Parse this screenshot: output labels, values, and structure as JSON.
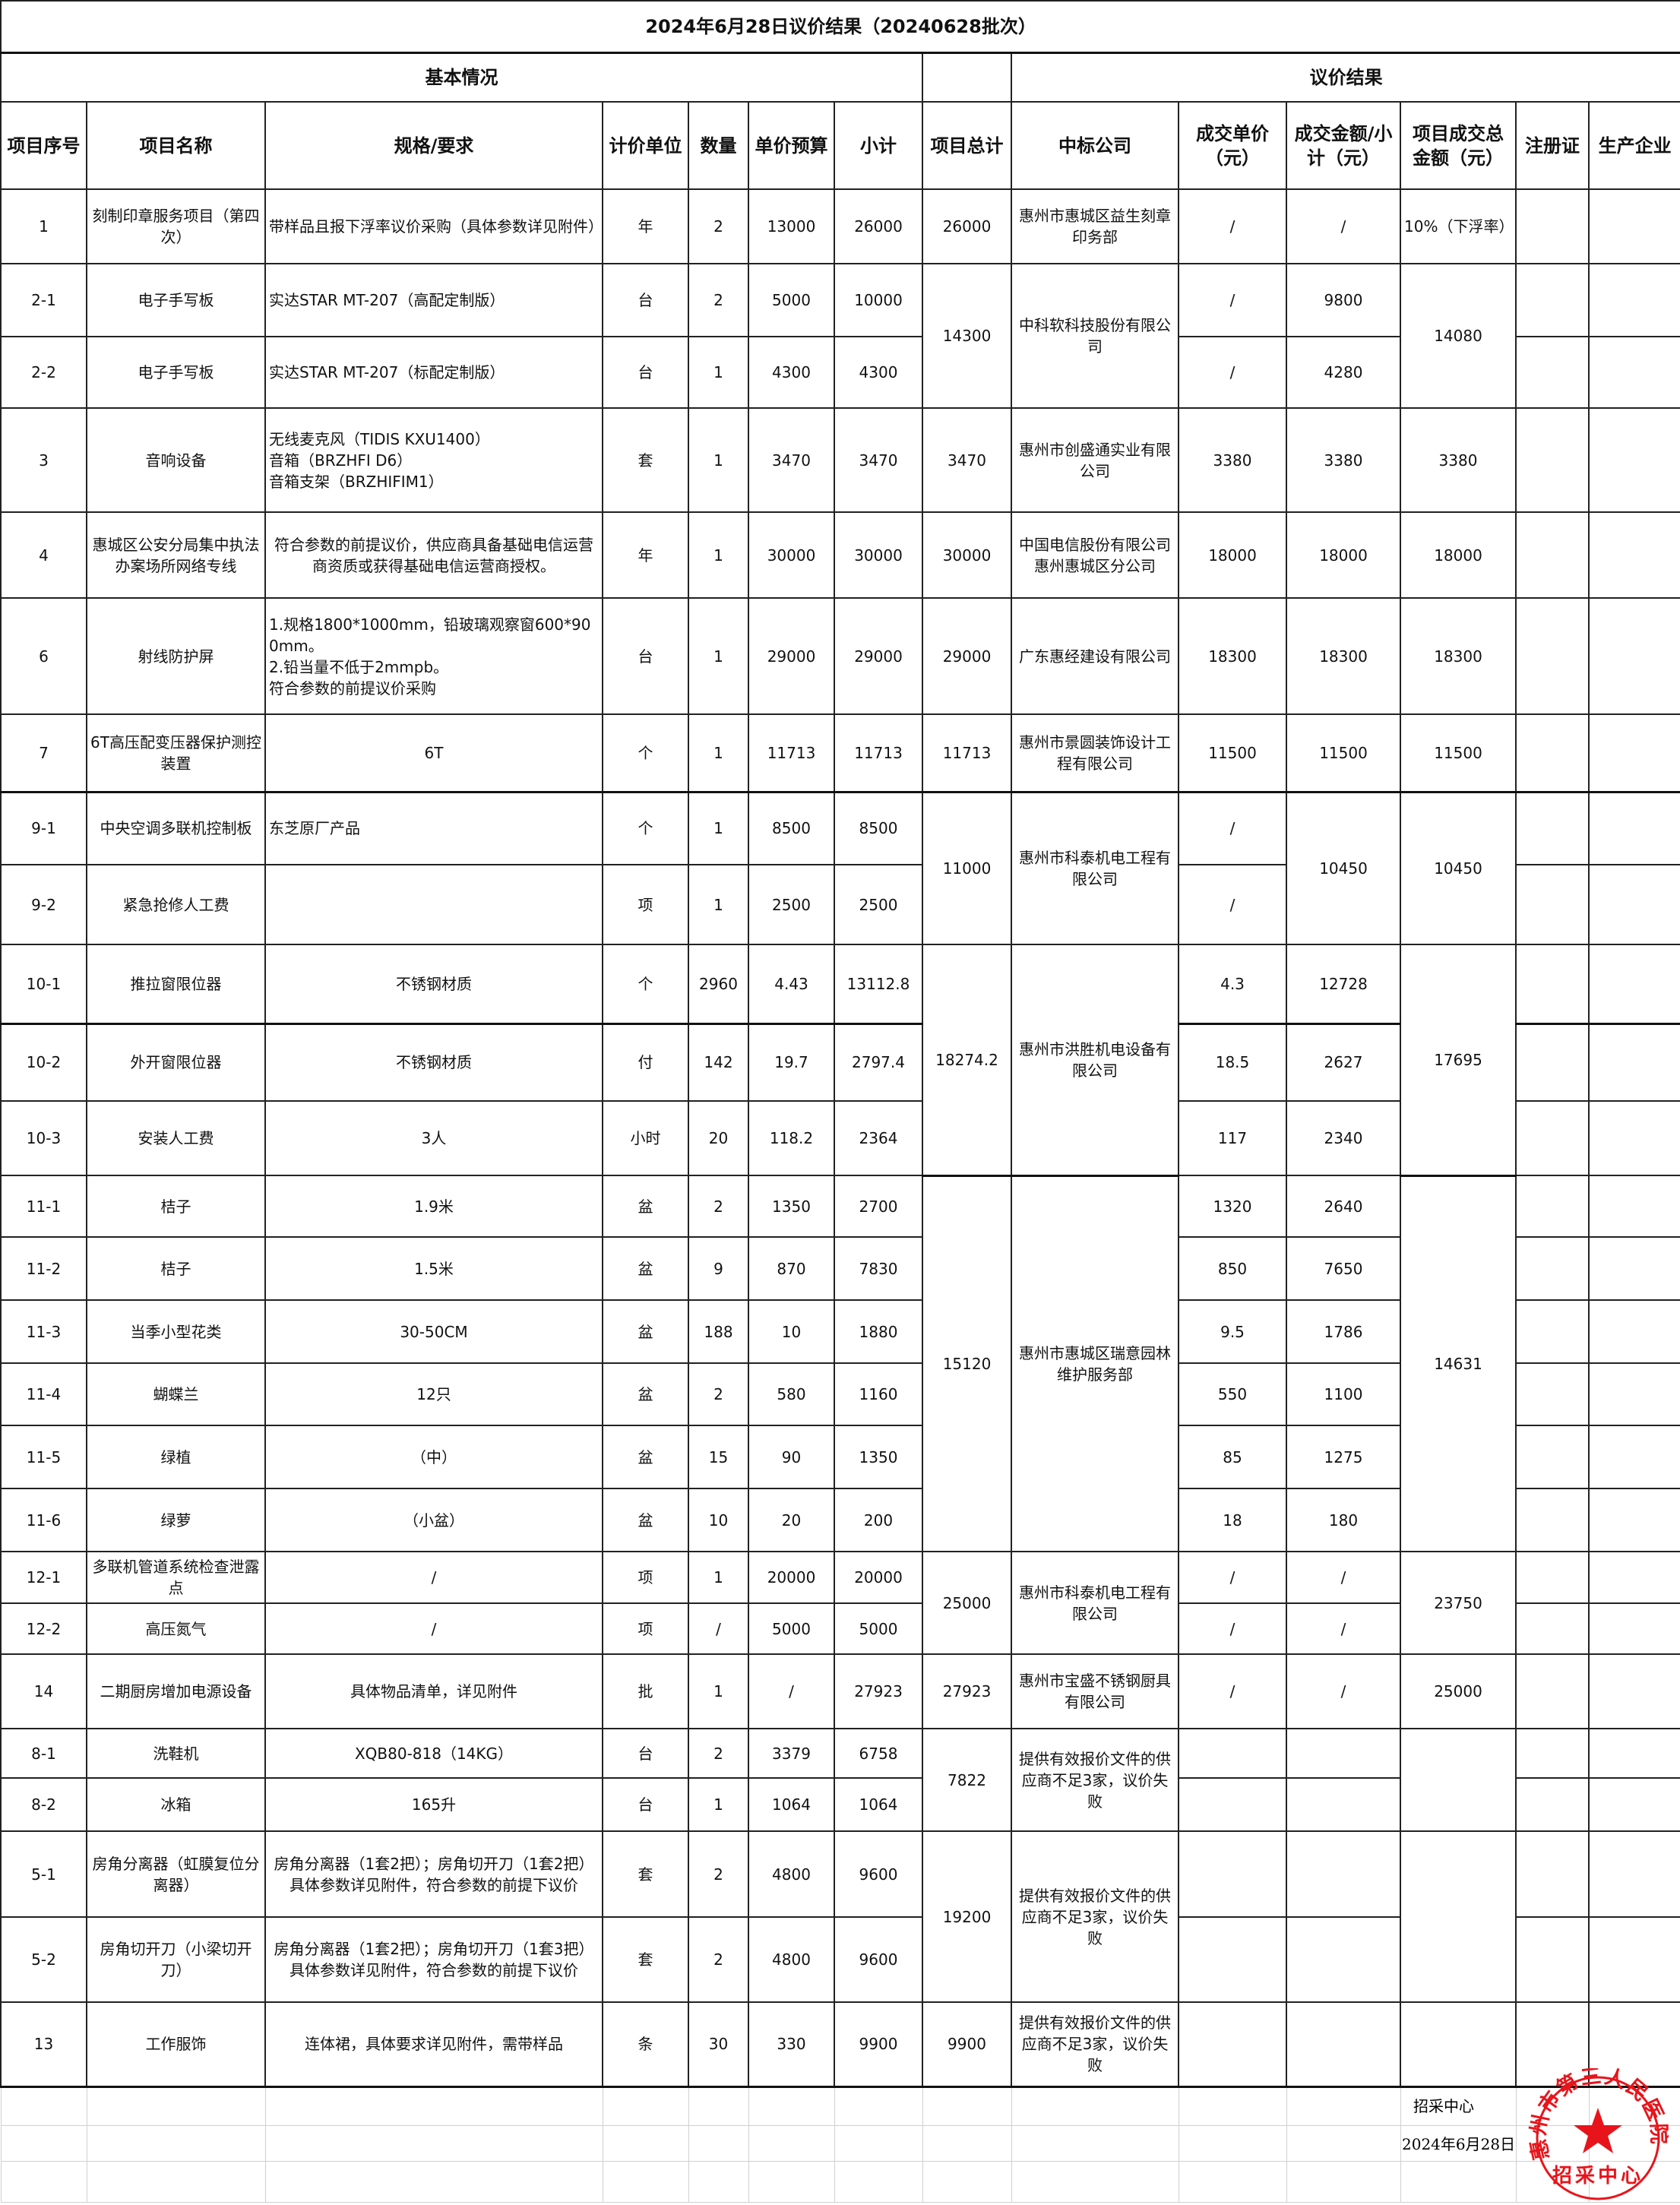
{
  "title": "2024年6月28日议价结果（20240628批次）",
  "sections": {
    "basic": "基本情况",
    "result": "议价结果"
  },
  "headers": [
    "项目序号",
    "项目名称",
    "规格/要求",
    "计价单位",
    "数量",
    "单价预算",
    "小计",
    "项目总计",
    "中标公司",
    "成交单价（元）",
    "成交金额/小计（元）",
    "项目成交总金额（元）",
    "注册证",
    "生产企业"
  ],
  "groups": [
    {
      "total": "26000",
      "company": "惠州市惠城区益生刻章印务部",
      "deal_total": "10%（下浮率）",
      "items": [
        {
          "id": "1",
          "name": "刻制印章服务项目（第四次）",
          "spec": "带样品且报下浮率议价采购（具体参数详见附件）",
          "unit": "年",
          "qty": "2",
          "price": "13000",
          "subtotal": "26000",
          "deal_price": "/",
          "deal_amount": "/"
        }
      ]
    },
    {
      "total": "14300",
      "company": "中科软科技股份有限公司",
      "deal_total": "14080",
      "items": [
        {
          "id": "2-1",
          "name": "电子手写板",
          "spec": "实达STAR MT-207（高配定制版）",
          "unit": "台",
          "qty": "2",
          "price": "5000",
          "subtotal": "10000",
          "deal_price": "/",
          "deal_amount": "9800"
        },
        {
          "id": "2-2",
          "name": "电子手写板",
          "spec": "实达STAR MT-207（标配定制版）",
          "unit": "台",
          "qty": "1",
          "price": "4300",
          "subtotal": "4300",
          "deal_price": "/",
          "deal_amount": "4280"
        }
      ]
    },
    {
      "total": "3470",
      "company": "惠州市创盛通实业有限公司",
      "deal_total": "3380",
      "items": [
        {
          "id": "3",
          "name": "音响设备",
          "spec": "无线麦克风（TIDIS KXU1400）\n音箱（BRZHFI D6）\n音箱支架（BRZHIFIM1）",
          "unit": "套",
          "qty": "1",
          "price": "3470",
          "subtotal": "3470",
          "deal_price": "3380",
          "deal_amount": "3380"
        }
      ]
    },
    {
      "total": "30000",
      "company": "中国电信股份有限公司惠州惠城区分公司",
      "deal_total": "18000",
      "items": [
        {
          "id": "4",
          "name": "惠城区公安分局集中执法办案场所网络专线",
          "spec": "符合参数的前提议价，供应商具备基础电信运营商资质或获得基础电信运营商授权。",
          "unit": "年",
          "qty": "1",
          "price": "30000",
          "subtotal": "30000",
          "deal_price": "18000",
          "deal_amount": "18000"
        }
      ]
    },
    {
      "total": "29000",
      "company": "广东惠经建设有限公司",
      "deal_total": "18300",
      "items": [
        {
          "id": "6",
          "name": "射线防护屏",
          "spec": "1.规格1800*1000mm，铅玻璃观察窗600*900mm。\n2.铅当量不低于2mmpb。\n符合参数的前提议价采购",
          "unit": "台",
          "qty": "1",
          "price": "29000",
          "subtotal": "29000",
          "deal_price": "18300",
          "deal_amount": "18300"
        }
      ]
    },
    {
      "total": "11713",
      "company": "惠州市景圆装饰设计工程有限公司",
      "deal_total": "11500",
      "items": [
        {
          "id": "7",
          "name": "6T高压配变压器保护测控装置",
          "spec": "6T",
          "unit": "个",
          "qty": "1",
          "price": "11713",
          "subtotal": "11713",
          "deal_price": "11500",
          "deal_amount": "11500"
        }
      ]
    },
    {
      "total": "11000",
      "company": "惠州市科泰机电工程有限公司",
      "deal_total": "10450",
      "deal_amount_merged": "10450",
      "items": [
        {
          "id": "9-1",
          "name": "中央空调多联机控制板",
          "spec": "东芝原厂产品",
          "unit": "个",
          "qty": "1",
          "price": "8500",
          "subtotal": "8500",
          "deal_price": "/"
        },
        {
          "id": "9-2",
          "name": "紧急抢修人工费",
          "spec": "",
          "unit": "项",
          "qty": "1",
          "price": "2500",
          "subtotal": "2500",
          "deal_price": "/"
        }
      ]
    },
    {
      "total": "18274.2",
      "company": "惠州市洪胜机电设备有限公司",
      "deal_total": "17695",
      "items": [
        {
          "id": "10-1",
          "name": "推拉窗限位器",
          "spec": "不锈钢材质",
          "unit": "个",
          "qty": "2960",
          "price": "4.43",
          "subtotal": "13112.8",
          "deal_price": "4.3",
          "deal_amount": "12728"
        },
        {
          "id": "10-2",
          "name": "外开窗限位器",
          "spec": "不锈钢材质",
          "unit": "付",
          "qty": "142",
          "price": "19.7",
          "subtotal": "2797.4",
          "deal_price": "18.5",
          "deal_amount": "2627"
        },
        {
          "id": "10-3",
          "name": "安装人工费",
          "spec": "3人",
          "unit": "小时",
          "qty": "20",
          "price": "118.2",
          "subtotal": "2364",
          "deal_price": "117",
          "deal_amount": "2340"
        }
      ]
    },
    {
      "total": "15120",
      "company": "惠州市惠城区瑞意园林维护服务部",
      "deal_total": "14631",
      "items": [
        {
          "id": "11-1",
          "name": "桔子",
          "spec": "1.9米",
          "unit": "盆",
          "qty": "2",
          "price": "1350",
          "subtotal": "2700",
          "deal_price": "1320",
          "deal_amount": "2640"
        },
        {
          "id": "11-2",
          "name": "桔子",
          "spec": "1.5米",
          "unit": "盆",
          "qty": "9",
          "price": "870",
          "subtotal": "7830",
          "deal_price": "850",
          "deal_amount": "7650"
        },
        {
          "id": "11-3",
          "name": "当季小型花类",
          "spec": "30-50CM",
          "unit": "盆",
          "qty": "188",
          "price": "10",
          "subtotal": "1880",
          "deal_price": "9.5",
          "deal_amount": "1786"
        },
        {
          "id": "11-4",
          "name": "蝴蝶兰",
          "spec": "12只",
          "unit": "盆",
          "qty": "2",
          "price": "580",
          "subtotal": "1160",
          "deal_price": "550",
          "deal_amount": "1100"
        },
        {
          "id": "11-5",
          "name": "绿植",
          "spec": "（中）",
          "unit": "盆",
          "qty": "15",
          "price": "90",
          "subtotal": "1350",
          "deal_price": "85",
          "deal_amount": "1275"
        },
        {
          "id": "11-6",
          "name": "绿萝",
          "spec": "（小盆）",
          "unit": "盆",
          "qty": "10",
          "price": "20",
          "subtotal": "200",
          "deal_price": "18",
          "deal_amount": "180"
        }
      ]
    },
    {
      "total": "25000",
      "company": "惠州市科泰机电工程有限公司",
      "deal_total": "23750",
      "items": [
        {
          "id": "12-1",
          "name": "多联机管道系统检查泄露点",
          "spec": "/",
          "unit": "项",
          "qty": "1",
          "price": "20000",
          "subtotal": "20000",
          "deal_price": "/",
          "deal_amount": "/"
        },
        {
          "id": "12-2",
          "name": "高压氮气",
          "spec": "/",
          "unit": "项",
          "qty": "/",
          "price": "5000",
          "subtotal": "5000",
          "deal_price": "/",
          "deal_amount": "/"
        }
      ]
    },
    {
      "total": "27923",
      "company": "惠州市宝盛不锈钢厨具有限公司",
      "deal_total": "25000",
      "items": [
        {
          "id": "14",
          "name": "二期厨房增加电源设备",
          "spec": "具体物品清单，详见附件",
          "unit": "批",
          "qty": "1",
          "price": "/",
          "subtotal": "27923",
          "deal_price": "/",
          "deal_amount": "/"
        }
      ]
    },
    {
      "total": "7822",
      "company": "提供有效报价文件的供应商不足3家，议价失败",
      "deal_total": "",
      "items": [
        {
          "id": "8-1",
          "name": "洗鞋机",
          "spec": "XQB80-818（14KG）",
          "unit": "台",
          "qty": "2",
          "price": "3379",
          "subtotal": "6758",
          "deal_price": "",
          "deal_amount": ""
        },
        {
          "id": "8-2",
          "name": "冰箱",
          "spec": "165升",
          "unit": "台",
          "qty": "1",
          "price": "1064",
          "subtotal": "1064",
          "deal_price": "",
          "deal_amount": ""
        }
      ]
    },
    {
      "total": "19200",
      "company": "提供有效报价文件的供应商不足3家，议价失败",
      "deal_total": "",
      "items": [
        {
          "id": "5-1",
          "name": "房角分离器（虹膜复位分离器）",
          "spec": "房角分离器（1套2把）；房角切开刀（1套2把）具体参数详见附件，符合参数的前提下议价",
          "unit": "套",
          "qty": "2",
          "price": "4800",
          "subtotal": "9600",
          "deal_price": "",
          "deal_amount": ""
        },
        {
          "id": "5-2",
          "name": "房角切开刀（小梁切开刀）",
          "spec": "房角分离器（1套2把）；房角切开刀（1套3把）具体参数详见附件，符合参数的前提下议价",
          "unit": "套",
          "qty": "2",
          "price": "4800",
          "subtotal": "9600",
          "deal_price": "",
          "deal_amount": ""
        }
      ]
    },
    {
      "total": "9900",
      "company": "提供有效报价文件的供应商不足3家，议价失败",
      "deal_total": "",
      "items": [
        {
          "id": "13",
          "name": "工作服饰",
          "spec": "连体裙，具体要求详见附件，需带样品",
          "unit": "条",
          "qty": "30",
          "price": "330",
          "subtotal": "9900",
          "deal_price": "",
          "deal_amount": ""
        }
      ]
    }
  ],
  "stamp": {
    "org": "惠州市第三人民医院",
    "dept": "招采中心",
    "overlay_dept": "招采中心",
    "overlay_date": "2024年6月28日",
    "color": "#e8141b"
  }
}
